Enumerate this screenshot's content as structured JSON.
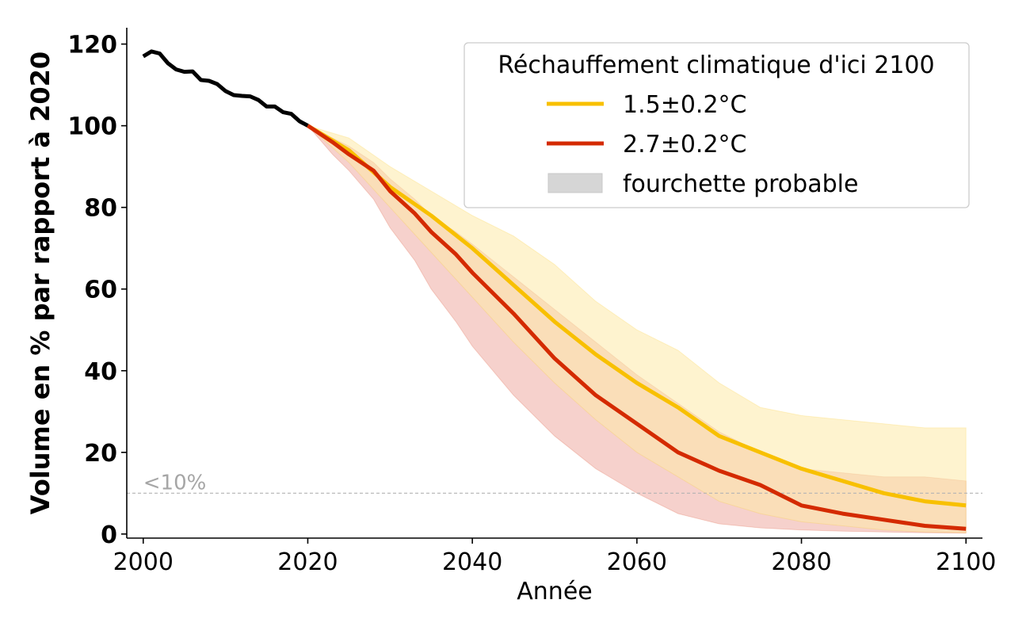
{
  "chart_data": {
    "type": "line",
    "xlabel": "Année",
    "ylabel": "Volume en % par rapport à 2020",
    "xlim": [
      1998,
      2102
    ],
    "ylim": [
      -1,
      124
    ],
    "xticks": [
      2000,
      2020,
      2040,
      2060,
      2080,
      2100
    ],
    "yticks": [
      0,
      20,
      40,
      60,
      80,
      100,
      120
    ],
    "grid": false,
    "reference_line": {
      "y": 10,
      "label": "<10%",
      "color": "#b3b3b3",
      "style": "dashed"
    },
    "legend": {
      "title": "Réchauffement climatique d'ici 2100",
      "placement": "top-right",
      "entries": [
        {
          "label": "1.5±0.2°C",
          "kind": "line",
          "color": "#f8c000"
        },
        {
          "label": "2.7±0.2°C",
          "kind": "line",
          "color": "#d42a00"
        },
        {
          "label": "fourchette probable",
          "kind": "patch",
          "color": "#d6d6d6"
        }
      ]
    },
    "series": [
      {
        "color": "#000000",
        "x": [
          2000,
          2001,
          2002,
          2003,
          2004,
          2005,
          2006,
          2007,
          2008,
          2009,
          2010,
          2011,
          2012,
          2013,
          2014,
          2015,
          2016,
          2017,
          2018,
          2019,
          2020
        ],
        "values": [
          117,
          118.2,
          117.7,
          115.3,
          113.8,
          113.2,
          113.3,
          111.2,
          111.0,
          110.2,
          108.5,
          107.5,
          107.3,
          107.2,
          106.3,
          104.7,
          104.7,
          103.3,
          102.9,
          101.1,
          100
        ]
      },
      {
        "name": "1.5±0.2°C",
        "color": "#f8c000",
        "band_color": "#fde9a8",
        "x": [
          2020,
          2025,
          2030,
          2035,
          2040,
          2045,
          2050,
          2055,
          2060,
          2065,
          2070,
          2075,
          2080,
          2085,
          2090,
          2095,
          2100
        ],
        "values": [
          100,
          94,
          85,
          78,
          70,
          61,
          52,
          44,
          37,
          31,
          24,
          20,
          16,
          13,
          10,
          8,
          7
        ],
        "upper": [
          100,
          97,
          90,
          84,
          78,
          73,
          66,
          57,
          50,
          45,
          37,
          31,
          29,
          28,
          27,
          26,
          26
        ],
        "lower": [
          100,
          91,
          80,
          69,
          58,
          47,
          37,
          28,
          20,
          14,
          8,
          5,
          3,
          2,
          1,
          0.5,
          0.3
        ]
      },
      {
        "name": "2.7±0.2°C",
        "color": "#d42a00",
        "band_color": "#f1b9b0",
        "x": [
          2020,
          2023,
          2025,
          2028,
          2030,
          2033,
          2035,
          2038,
          2040,
          2045,
          2050,
          2055,
          2060,
          2065,
          2070,
          2075,
          2080,
          2085,
          2090,
          2095,
          2100
        ],
        "values": [
          100,
          96,
          93,
          89,
          84,
          78.5,
          74,
          68.5,
          64,
          54,
          43,
          34,
          27,
          20,
          15.5,
          12,
          7,
          5,
          3.5,
          2,
          1.3
        ],
        "upper": [
          100,
          97,
          95,
          91,
          87,
          82,
          78,
          74,
          71,
          63,
          55,
          47,
          39,
          32,
          25,
          20,
          16,
          15,
          14,
          14,
          13
        ],
        "lower": [
          100,
          93,
          89,
          82,
          75,
          67,
          60,
          52,
          46,
          34,
          24,
          16,
          10,
          5,
          2.5,
          1.5,
          1,
          0.7,
          0.5,
          0.3,
          0.2
        ]
      }
    ]
  }
}
